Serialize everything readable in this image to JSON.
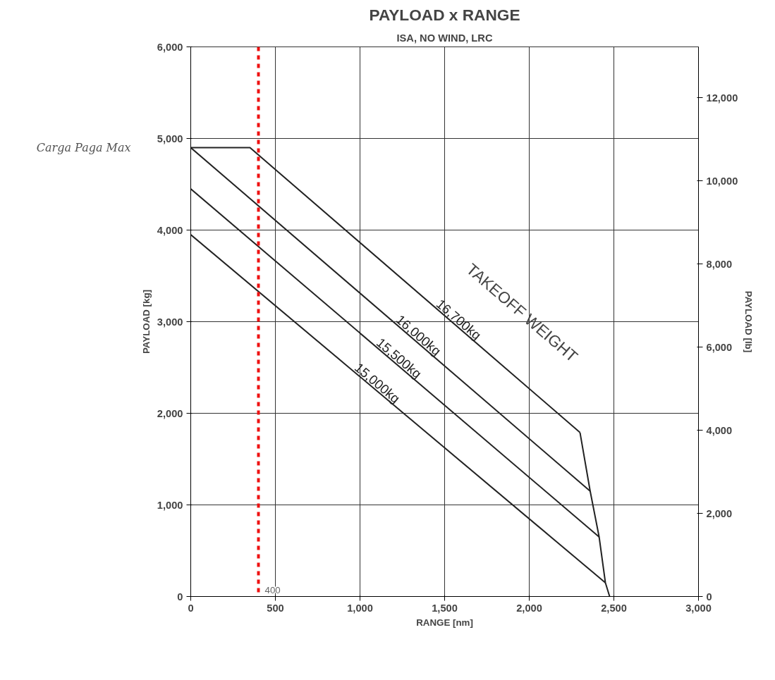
{
  "chart_data": {
    "type": "line",
    "title": "PAYLOAD x RANGE",
    "subtitle": "ISA, NO WIND, LRC",
    "xlabel": "RANGE [nm]",
    "ylabel": "PAYLOAD [kg]",
    "y2label": "PAYLOAD [lb]",
    "xlim": [
      0,
      3000
    ],
    "xticks": [
      0,
      500,
      {
        "value": 1000,
        "label": "1,000"
      },
      {
        "value": 1500,
        "label": "1,500"
      },
      {
        "value": 2000,
        "label": "2,000"
      },
      {
        "value": 2500,
        "label": "2,500"
      },
      {
        "value": 3000,
        "label": "3,000"
      }
    ],
    "ylim": [
      0,
      6000
    ],
    "yticks": [
      0,
      {
        "value": 1000,
        "label": "1,000"
      },
      {
        "value": 2000,
        "label": "2,000"
      },
      {
        "value": 3000,
        "label": "3,000"
      },
      {
        "value": 4000,
        "label": "4,000"
      },
      {
        "value": 5000,
        "label": "5,000"
      },
      {
        "value": 6000,
        "label": "6,000"
      }
    ],
    "y2lim": [
      0,
      13228
    ],
    "y2ticks": [
      0,
      {
        "value": 2000,
        "label": "2,000"
      },
      {
        "value": 4000,
        "label": "4,000"
      },
      {
        "value": 6000,
        "label": "6,000"
      },
      {
        "value": 8000,
        "label": "8,000"
      },
      {
        "value": 10000,
        "label": "10,000"
      },
      {
        "value": 12000,
        "label": "12,000"
      }
    ],
    "grid": true,
    "marker": "none",
    "line_style": "solid",
    "series": [
      {
        "name": "16,700kg",
        "color": "#222222",
        "x": [
          0,
          350,
          2300
        ],
        "values": [
          4900,
          4900,
          1790
        ]
      },
      {
        "name": "16,000kg",
        "color": "#222222",
        "x": [
          0,
          2360
        ],
        "values": [
          4900,
          1150
        ]
      },
      {
        "name": "15,500kg",
        "color": "#222222",
        "x": [
          0,
          2413
        ],
        "values": [
          4450,
          650
        ]
      },
      {
        "name": "15,000kg",
        "color": "#222222",
        "x": [
          0,
          2450
        ],
        "values": [
          3950,
          150
        ]
      },
      {
        "color": "#222222",
        "x": [
          2300,
          2360,
          2413,
          2450,
          2475
        ],
        "values": [
          1790,
          1150,
          650,
          150,
          0
        ]
      }
    ],
    "ref_lines": [
      {
        "axis": "x",
        "value": 400,
        "label": "400",
        "color": "#ee1111",
        "line_style": "dashed"
      }
    ],
    "annotations": [
      "TAKEOFF WEIGHT",
      "Carga Paga Max"
    ]
  }
}
